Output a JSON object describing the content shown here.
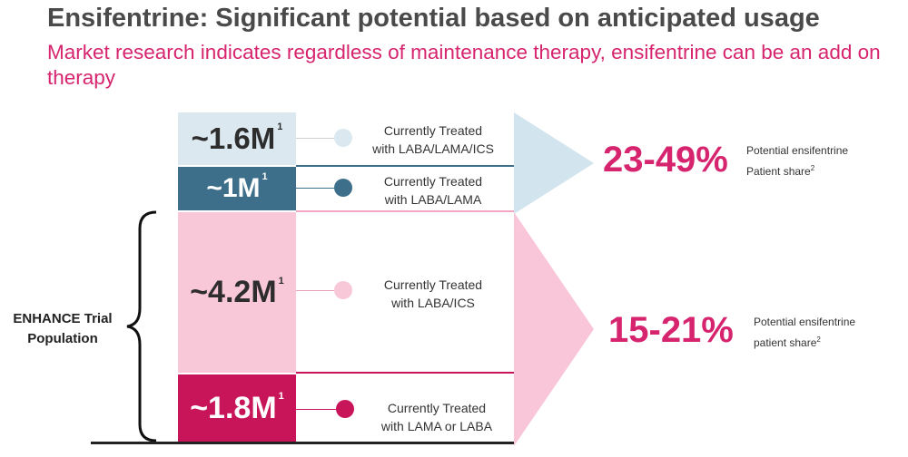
{
  "title": "Ensifentrine: Significant potential based on anticipated usage",
  "subtitle": "Market research indicates regardless of maintenance therapy, ensifentrine can be an add on therapy",
  "segments": [
    {
      "value": "~1.6M",
      "footnote": "1",
      "label_line1": "Currently Treated",
      "label_line2": "with LABA/LAMA/ICS",
      "color": "#dbe8f0",
      "text_color": "#2d2d2d"
    },
    {
      "value": "~1M",
      "footnote": "1",
      "label_line1": "Currently Treated",
      "label_line2": "with LABA/LAMA",
      "color": "#3d6f8a",
      "text_color": "#ffffff"
    },
    {
      "value": "~4.2M",
      "footnote": "1",
      "label_line1": "Currently Treated",
      "label_line2": "with LABA/ICS",
      "color": "#f8c8d8",
      "text_color": "#2d2d2d"
    },
    {
      "value": "~1.8M",
      "footnote": "1",
      "label_line1": "Currently Treated",
      "label_line2": "with LAMA  or LABA",
      "color": "#c8155a",
      "text_color": "#ffffff"
    }
  ],
  "shares": [
    {
      "percent": "23-49%",
      "line1": "Potential ensifentrine",
      "line2": "Patient share",
      "footnote": "2",
      "arrow_color": "#d2e4ee"
    },
    {
      "percent": "15-21%",
      "line1": "Potential ensifentrine",
      "line2": "patient share",
      "footnote": "2",
      "arrow_color": "#f9c6d9"
    }
  ],
  "bracket_label": {
    "line1": "ENHANCE Trial",
    "line2": "Population"
  }
}
